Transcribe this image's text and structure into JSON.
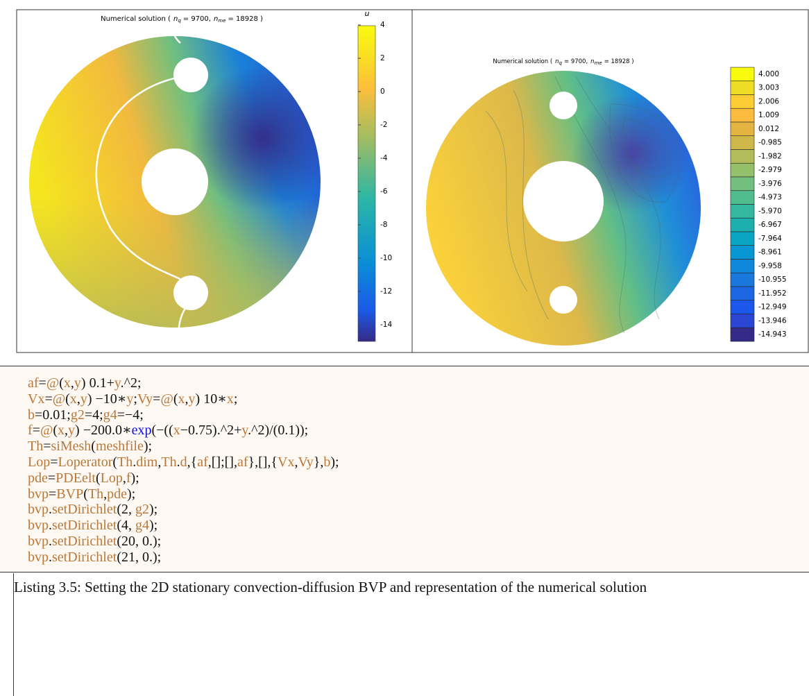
{
  "figures": [
    {
      "title": {
        "prefix": "Numerical solution (",
        "nq_symbol": "n",
        "nq_sub": "q",
        "nq_value": "= 9700,",
        "nme_symbol": "n",
        "nme_sub": "me",
        "nme_value": "= 18928 )"
      },
      "colorbar_label": "u",
      "colorbar_ticks": [
        "4",
        "2",
        "0",
        "-2",
        "-4",
        "-6",
        "-8",
        "-10",
        "-12",
        "-14"
      ]
    },
    {
      "title": {
        "prefix": "Numerical solution (",
        "nq_symbol": "n",
        "nq_sub": "q",
        "nq_value": "= 9700,",
        "nme_symbol": "n",
        "nme_sub": "me",
        "nme_value": "= 18928 )"
      },
      "colorbar_ticks": [
        "4.000",
        "3.003",
        "2.006",
        "1.009",
        "0.012",
        "-0.985",
        "-1.982",
        "-2.979",
        "-3.976",
        "-4.973",
        "-5.970",
        "-6.967",
        "-7.964",
        "-8.961",
        "-9.958",
        "-10.955",
        "-11.952",
        "-12.949",
        "-13.946",
        "-14.943"
      ],
      "colorbar_colors": [
        "#f9fb0e",
        "#eddd25",
        "#fccd35",
        "#fabb3f",
        "#e4b442",
        "#cdb849",
        "#b3bc5a",
        "#94bf6b",
        "#72bf7e",
        "#50bd8f",
        "#34b8a0",
        "#1cafad",
        "#0ca5c1",
        "#0997d4",
        "#0f87da",
        "#1a78dd",
        "#1d68e2",
        "#1a57ea",
        "#2c46d4",
        "#352a87"
      ]
    }
  ],
  "listing": {
    "lines": [
      "af=@(x,y) 0.1+y.^2;",
      "Vx=@(x,y) −10∗y;Vy=@(x,y) 10∗x;",
      "b=0.01;g2=4;g4=−4;",
      "f=@(x,y) −200.0∗exp(−((x−0.75).^2+y.^2)/(0.1));",
      "Th=siMesh(meshfile);",
      "Lop=Loperator(Th.dim,Th.d,{af,[];[],af},[],{Vx,Vy},b);",
      "pde=PDEelt(Lop,f);",
      "bvp=BVP(Th,pde);",
      "bvp.setDirichlet(2, g2);",
      "bvp.setDirichlet(4, g4);",
      "bvp.setDirichlet(20, 0.);",
      "bvp.setDirichlet(21, 0.);"
    ],
    "caption": "Listing 3.5: Setting the 2D stationary convection-diffusion BVP and representation of the numerical solution"
  }
}
